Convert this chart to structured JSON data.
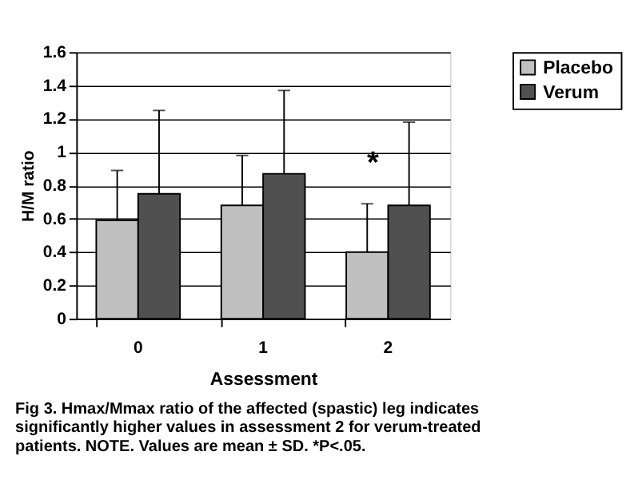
{
  "chart_data": {
    "type": "bar",
    "xlabel": "Assessment",
    "ylabel": "H/M ratio",
    "categories": [
      "0",
      "1",
      "2"
    ],
    "series": [
      {
        "name": "Placebo",
        "color": "#c0c0c0",
        "values": [
          0.59,
          0.68,
          0.4
        ],
        "errors": [
          [
            0.59,
            0.89
          ],
          [
            0.68,
            0.98
          ],
          [
            0.4,
            0.69
          ]
        ]
      },
      {
        "name": "Verum",
        "color": "#505050",
        "values": [
          0.75,
          0.87,
          0.68
        ],
        "errors": [
          [
            0.75,
            1.25
          ],
          [
            0.87,
            1.37
          ],
          [
            0.68,
            1.18
          ]
        ]
      }
    ],
    "ylim": [
      0,
      1.6
    ],
    "yticks": [
      0,
      0.2,
      0.4,
      0.6,
      0.8,
      1,
      1.2,
      1.4,
      1.6
    ],
    "grid": "y",
    "legend": "right",
    "annotations": [
      "*",
      "Fig 3.  Hmax/Mmax ratio of the affected (spastic) leg indicates significantly higher values in assessment 2 for verum-treated patients. NOTE. Values are mean ± SD. *P<.05."
    ]
  }
}
